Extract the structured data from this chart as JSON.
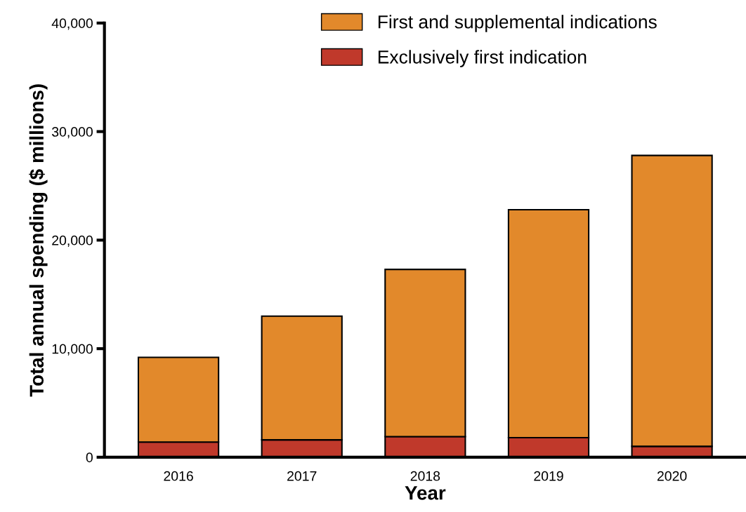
{
  "chart_data": {
    "type": "bar",
    "stacked": true,
    "xlabel": "Year",
    "ylabel": "Total annual spending ($ millions)",
    "categories": [
      "2016",
      "2017",
      "2018",
      "2019",
      "2020"
    ],
    "series": [
      {
        "name": "Exclusively first indication",
        "color": "#c0392b",
        "values": [
          1400,
          1600,
          1900,
          1800,
          1000
        ]
      },
      {
        "name": "First and supplemental indications",
        "color": "#e2892b",
        "values": [
          7800,
          11400,
          15400,
          21000,
          26800
        ]
      }
    ],
    "ylim": [
      0,
      40000
    ],
    "yticks": [
      {
        "value": 0,
        "label": "0"
      },
      {
        "value": 10000,
        "label": "10,000"
      },
      {
        "value": 20000,
        "label": "20,000"
      },
      {
        "value": 30000,
        "label": "30,000"
      },
      {
        "value": 40000,
        "label": "40,000"
      }
    ],
    "grid": false,
    "legend": "top"
  }
}
